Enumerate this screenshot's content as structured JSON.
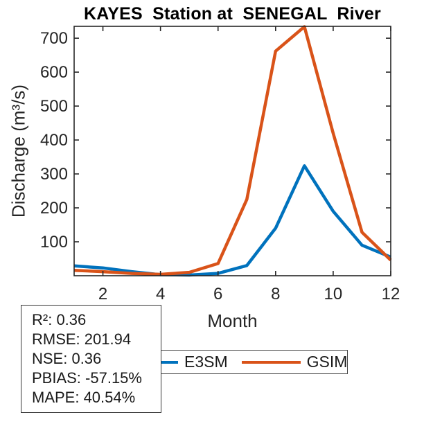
{
  "title": "KAYES  Station at  SENEGAL  River",
  "chart_data": {
    "type": "line",
    "x": [
      1,
      2,
      3,
      4,
      5,
      6,
      7,
      8,
      9,
      10,
      11,
      12
    ],
    "xlabel": "Month",
    "ylabel": "Discharge (m³/s)",
    "xlim": [
      1,
      12
    ],
    "ylim": [
      0,
      735
    ],
    "xticks": [
      2,
      4,
      6,
      8,
      10,
      12
    ],
    "yticks": [
      100,
      200,
      300,
      400,
      500,
      600,
      700
    ],
    "grid": false,
    "legend_position": "below-axes-horizontal",
    "series": [
      {
        "name": "E3SM",
        "color": "#0072BD",
        "values": [
          29,
          23,
          12,
          3,
          2,
          7,
          30,
          140,
          324,
          190,
          90,
          55
        ]
      },
      {
        "name": "GSIM",
        "color": "#D95319",
        "values": [
          16,
          12,
          7,
          4,
          10,
          36,
          225,
          662,
          734,
          420,
          128,
          46
        ]
      }
    ]
  },
  "legend": {
    "items": [
      {
        "label": "E3SM",
        "color": "#0072BD"
      },
      {
        "label": "GSIM",
        "color": "#D95319"
      }
    ]
  },
  "stats_box": {
    "lines": [
      "R²: 0.36",
      "RMSE: 201.94",
      "NSE: 0.36",
      "PBIAS: -57.15%",
      "MAPE: 40.54%"
    ]
  },
  "axis_color": "#262626"
}
